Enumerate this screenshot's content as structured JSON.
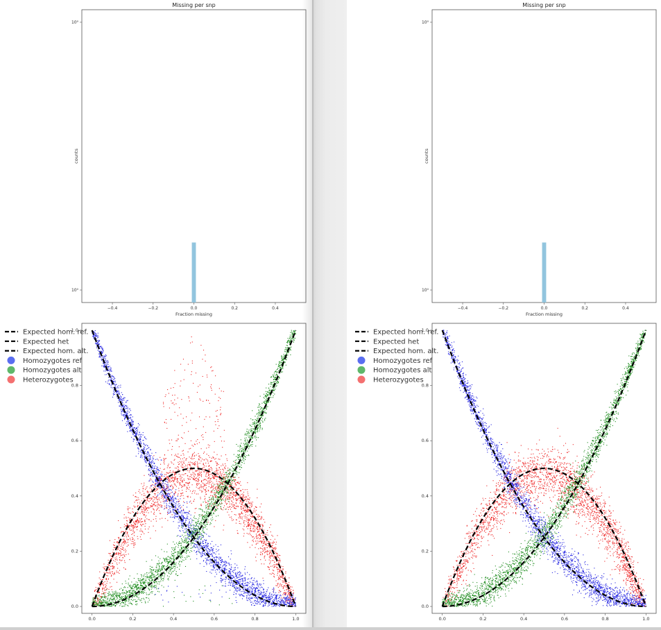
{
  "chart_data": [
    {
      "type": "bar",
      "title": "Missing per snp",
      "xlabel": "Fraction missing",
      "ylabel": "counts",
      "xlim": [
        -0.55,
        0.55
      ],
      "yscale": "log",
      "ylim": [
        0.8,
        1.2
      ],
      "xticks": [
        "−0.4",
        "−0.2",
        "0.0",
        "0.2",
        "0.4"
      ],
      "yticks": [
        "10⁰",
        "10⁰"
      ],
      "bars": [
        {
          "x": 0.0,
          "width": 0.02,
          "value": 0.92
        }
      ],
      "color": "#92c5de"
    },
    {
      "type": "scatter",
      "xlim": [
        -0.05,
        1.05
      ],
      "ylim": [
        -0.025,
        1.025
      ],
      "xticks": [
        "0.0",
        "0.2",
        "0.4",
        "0.6",
        "0.8",
        "1.0"
      ],
      "yticks": [
        "0.0",
        "0.2",
        "0.4",
        "0.6",
        "0.8",
        "1.0"
      ],
      "grid": false,
      "legend_position": "outside-left",
      "lines": [
        {
          "name": "Expected hom. ref.",
          "formula": "(1-p)^2",
          "style": "dashed",
          "color": "#000000"
        },
        {
          "name": "Expected het",
          "formula": "2p(1-p)",
          "style": "dashed",
          "color": "#000000"
        },
        {
          "name": "Expected hom. alt.",
          "formula": "p^2",
          "style": "dashed",
          "color": "#000000"
        }
      ],
      "series": [
        {
          "name": "Homozygotes ref",
          "color": "#2020e0"
        },
        {
          "name": "Homozygotes alt",
          "color": "#1a8a1a"
        },
        {
          "name": "Heterozygotes",
          "color": "#ee2020"
        }
      ]
    }
  ],
  "panels": [
    {
      "id": "left",
      "hist": {
        "title": "Missing per snp",
        "xlabel": "Fraction missing",
        "ylabel": "counts"
      }
    },
    {
      "id": "right",
      "hist": {
        "title": "Missing per snp",
        "xlabel": "Fraction missing",
        "ylabel": "counts"
      }
    }
  ],
  "legend": {
    "items": [
      {
        "label": "Expected hom. ref.",
        "kind": "line",
        "color": "#000000"
      },
      {
        "label": "Expected het",
        "kind": "line",
        "color": "#000000"
      },
      {
        "label": "Expected hom. alt.",
        "kind": "line",
        "color": "#000000"
      },
      {
        "label": "Homozygotes ref",
        "kind": "dot",
        "color": "#5a6ef0"
      },
      {
        "label": "Homozygotes alt",
        "kind": "dot",
        "color": "#5fb86a"
      },
      {
        "label": "Heterozygotes",
        "kind": "dot",
        "color": "#f47070"
      }
    ]
  },
  "colors": {
    "hist_bar": "#92c5de",
    "hom_ref": "#2020e0",
    "hom_alt": "#1a8a1a",
    "het": "#ee2020"
  }
}
